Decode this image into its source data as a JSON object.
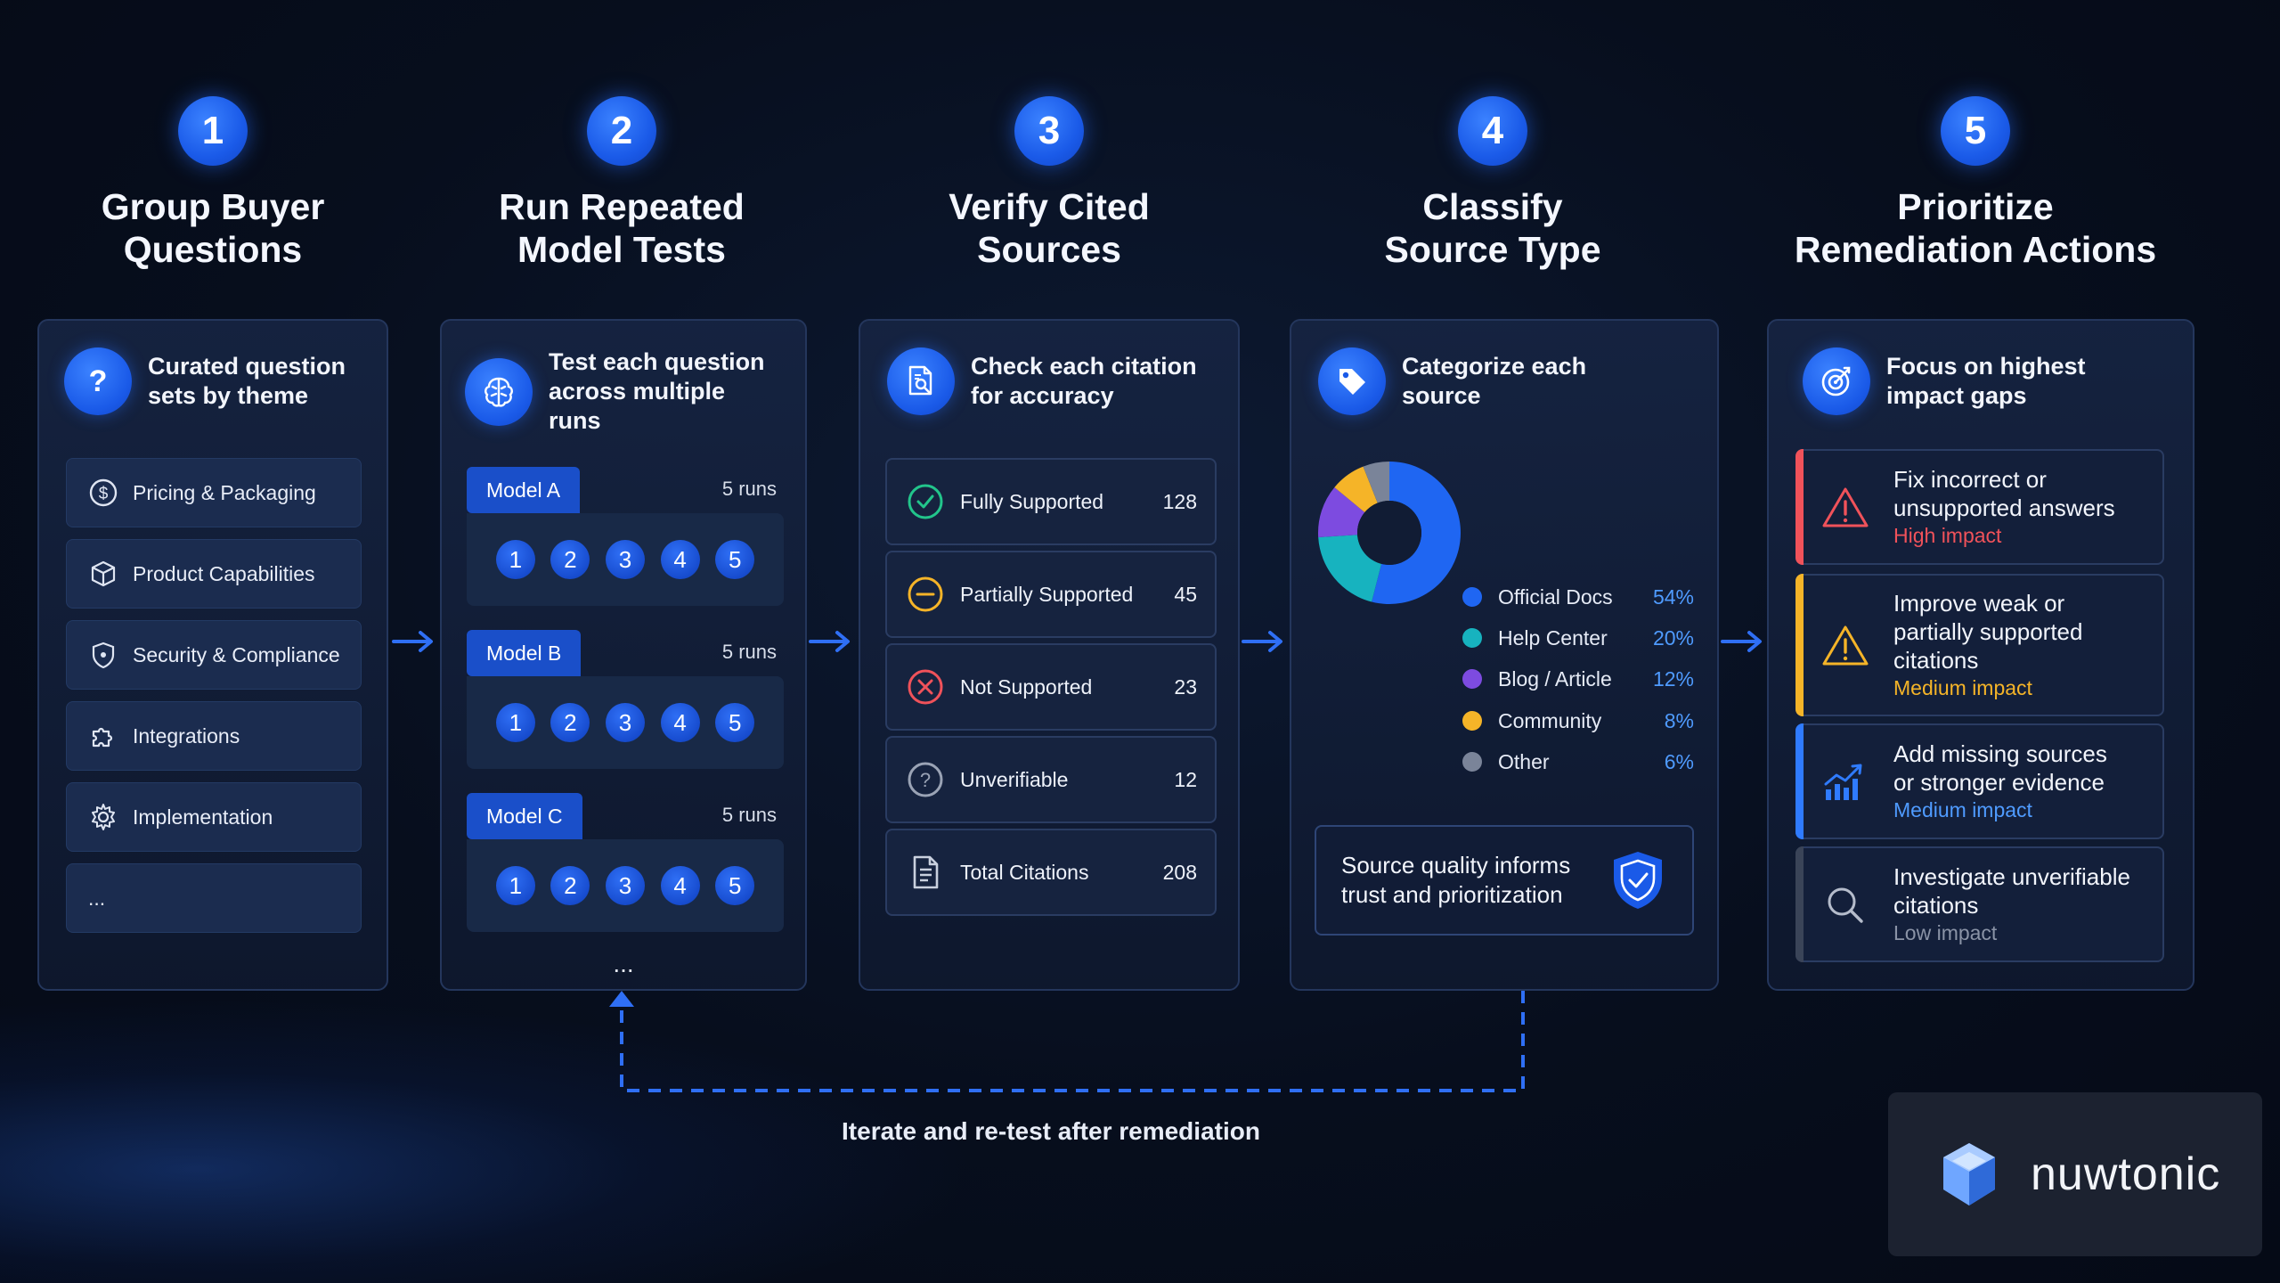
{
  "steps": [
    {
      "num": "1",
      "title": "Group Buyer Questions"
    },
    {
      "num": "2",
      "title": "Run Repeated Model Tests"
    },
    {
      "num": "3",
      "title": "Verify Cited Sources"
    },
    {
      "num": "4",
      "title": "Classify Source Type"
    },
    {
      "num": "5",
      "title": "Prioritize Remediation Actions"
    }
  ],
  "panel1": {
    "heading": "Curated question sets by theme",
    "items": [
      "Pricing & Packaging",
      "Product Capabilities",
      "Security & Compliance",
      "Integrations",
      "Implementation",
      "..."
    ]
  },
  "panel2": {
    "heading": "Test each question across multiple runs",
    "models": [
      {
        "name": "Model A",
        "runs_label": "5 runs",
        "runs": [
          "1",
          "2",
          "3",
          "4",
          "5"
        ]
      },
      {
        "name": "Model B",
        "runs_label": "5 runs",
        "runs": [
          "1",
          "2",
          "3",
          "4",
          "5"
        ]
      },
      {
        "name": "Model C",
        "runs_label": "5 runs",
        "runs": [
          "1",
          "2",
          "3",
          "4",
          "5"
        ]
      }
    ],
    "more": "..."
  },
  "panel3": {
    "heading": "Check each citation for accuracy",
    "items": [
      {
        "label": "Fully Supported",
        "count": "128",
        "icon": "check-circle-icon",
        "color": "#22c58b"
      },
      {
        "label": "Partially Supported",
        "count": "45",
        "icon": "minus-circle-icon",
        "color": "#f5b428"
      },
      {
        "label": "Not Supported",
        "count": "23",
        "icon": "x-circle-icon",
        "color": "#f0525a"
      },
      {
        "label": "Unverifiable",
        "count": "12",
        "icon": "question-circle-icon",
        "color": "#9aa3b5"
      },
      {
        "label": "Total Citations",
        "count": "208",
        "icon": "document-icon",
        "color": "#c9d0de"
      }
    ]
  },
  "panel4": {
    "heading": "Categorize each source",
    "chart_data": {
      "type": "pie",
      "categories": [
        "Official Docs",
        "Help Center",
        "Blog / Article",
        "Community",
        "Other"
      ],
      "values": [
        54,
        20,
        12,
        8,
        6
      ],
      "labels": [
        "54%",
        "20%",
        "12%",
        "8%",
        "6%"
      ],
      "colors": [
        "#1f66f2",
        "#17b3bf",
        "#7d4be0",
        "#f5b428",
        "#7a8499"
      ]
    },
    "quality_note": "Source quality informs trust and prioritization"
  },
  "panel5": {
    "heading": "Focus on highest impact gaps",
    "items": [
      {
        "title": "Fix incorrect or unsupported answers",
        "impact": "High impact",
        "color": "#f0525a",
        "icon": "warning-icon"
      },
      {
        "title": "Improve weak or partially supported citations",
        "impact": "Medium impact",
        "color": "#f5b428",
        "icon": "warning-icon"
      },
      {
        "title": "Add missing sources or stronger evidence",
        "impact": "Medium impact",
        "color": "#2f7bff",
        "icon": "chart-up-icon"
      },
      {
        "title": "Investigate unverifiable citations",
        "impact": "Low impact",
        "color": "#8a93a6",
        "icon": "search-icon"
      }
    ]
  },
  "loop_label": "Iterate and re-test after remediation",
  "brand": "nuwtonic"
}
